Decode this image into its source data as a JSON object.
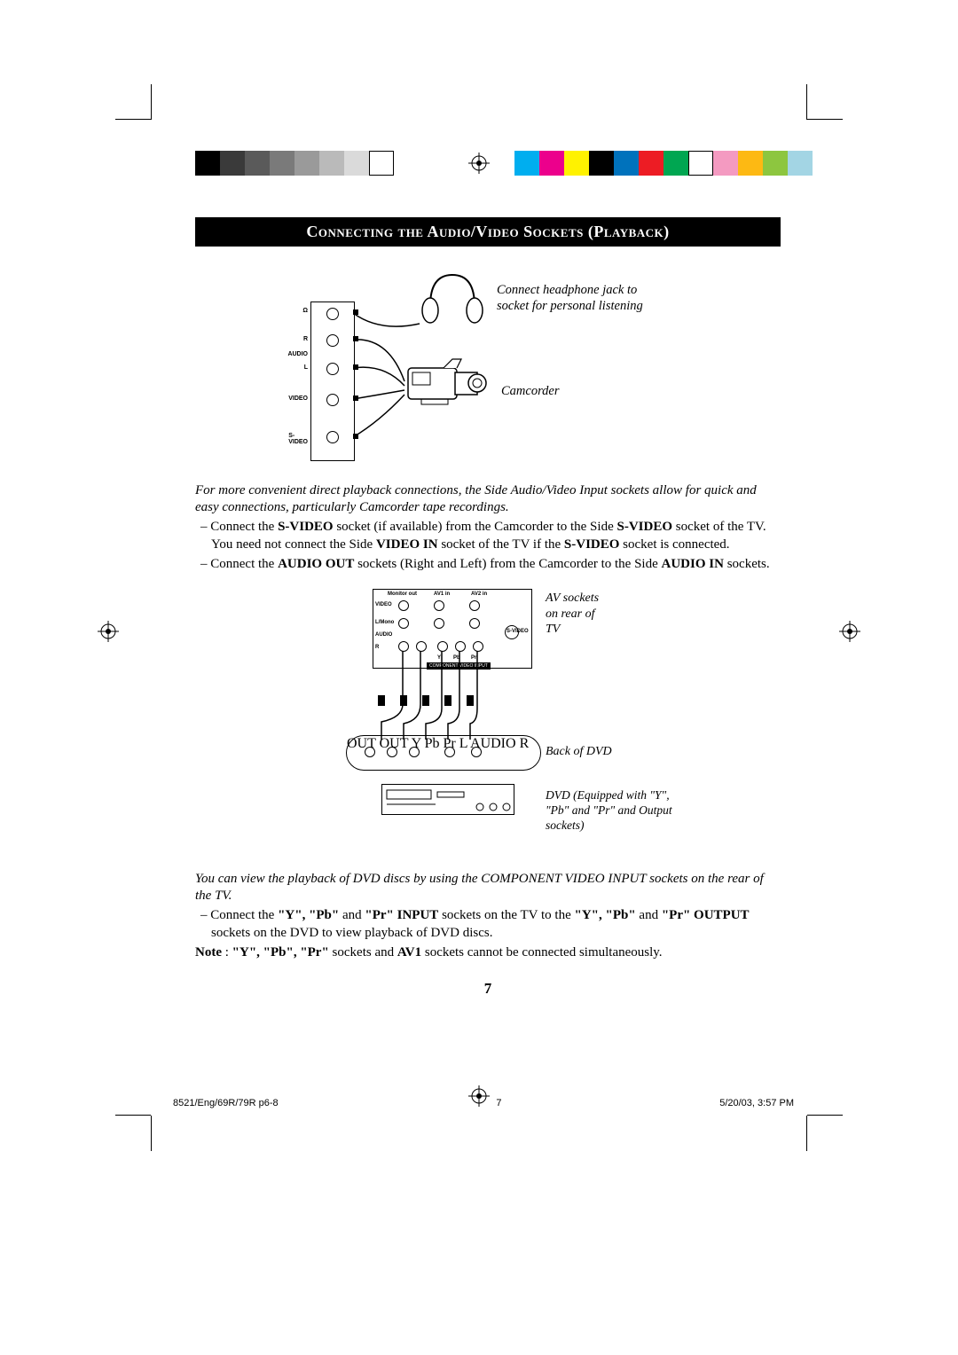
{
  "colorbar_left": [
    "#000000",
    "#3a3a3a",
    "#5a5a5a",
    "#7a7a7a",
    "#9a9a9a",
    "#bababa",
    "#dadada",
    "#ffffff"
  ],
  "colorbar_right": [
    "#00aeef",
    "#ec008c",
    "#fff200",
    "#000000",
    "#0072bc",
    "#ed1c24",
    "#00a651",
    "#ffffff",
    "#f49ac1",
    "#fdb913",
    "#8dc63f",
    "#a3d5e4"
  ],
  "title": "Connecting the Audio/Video Sockets (Playback)",
  "headphone_label_l1": "Connect headphone jack to",
  "headphone_label_l2": "socket for personal listening",
  "camcorder_label": "Camcorder",
  "side_panel": {
    "labels": [
      "R",
      "AUDIO",
      "L",
      "VIDEO",
      "S-VIDEO"
    ],
    "headphone_icon": "Ω"
  },
  "para1": "For more convenient direct playback connections, the Side Audio/Video Input sockets allow for quick and easy connections, particularly Camcorder tape  recordings.",
  "bullet1_pre": "– Connect the ",
  "b_svideo": "S-VIDEO",
  "bullet1_mid": " socket (if available) from the Camcorder to the Side ",
  "bullet1_post": " socket of the TV.  You need not connect the Side ",
  "b_videoin": "VIDEO IN",
  "bullet1_end": " socket of the TV if the ",
  "bullet1_fin": " socket is connected.",
  "bullet2_pre": "– Connect the ",
  "b_audioout": "AUDIO OUT",
  "bullet2_mid": " sockets (Right and Left) from the Camcorder to the Side ",
  "b_audioin": "AUDIO IN",
  "bullet2_end": " sockets.",
  "av_label_l1": "AV sockets",
  "av_label_l2": "on rear of",
  "av_label_l3": "TV",
  "back_dvd_label": "Back of DVD",
  "dvd_eq_l1": "DVD (Equipped with \"Y\",",
  "dvd_eq_l2": "\"Pb\" and \"Pr\" and Output",
  "dvd_eq_l3": "sockets)",
  "tv_back_labels": {
    "monitor": "Monitor out",
    "av1": "AV1 in",
    "av2": "AV2 in",
    "video": "VIDEO",
    "lmono": "L/Mono",
    "audio": "AUDIO",
    "r": "R",
    "y": "Y",
    "pb": "Pb",
    "pr": "Pr",
    "svideo": "S-VIDEO",
    "comp": "COMPONENT VIDEO INPUT"
  },
  "dvd_back_labels": {
    "out1": "OUT",
    "out2": "OUT",
    "y": "Y",
    "pb": "Pb",
    "pr": "Pr",
    "l": "L",
    "audio": "AUDIO",
    "r": "R"
  },
  "para2": "You can view the playback of DVD discs by using the COMPONENT VIDEO INPUT sockets on the rear of the TV.",
  "bullet3_pre": "– Connect the ",
  "b_ypbpr1": "\"Y\", \"Pb\"",
  "bullet3_and": " and ",
  "b_pr_input": "\"Pr\" INPUT",
  "bullet3_mid": " sockets on the TV to the ",
  "b_ypb2": "\"Y\", \"Pb\"",
  "bullet3_and2": " and ",
  "b_pr_output": "\"Pr\" OUTPUT",
  "bullet3_end": " sockets on the DVD to view playback of DVD discs.",
  "note_pre": "Note",
  "note_colon": " : ",
  "note_ypbpr": "\"Y\", \"Pb\", \"Pr\"",
  "note_mid": " sockets and ",
  "b_av1": "AV1",
  "note_end": " sockets cannot be connected simultaneously.",
  "page_number": "7",
  "footer_left": "8521/Eng/69R/79R p6-8",
  "footer_mid": "7",
  "footer_right": "5/20/03, 3:57 PM"
}
